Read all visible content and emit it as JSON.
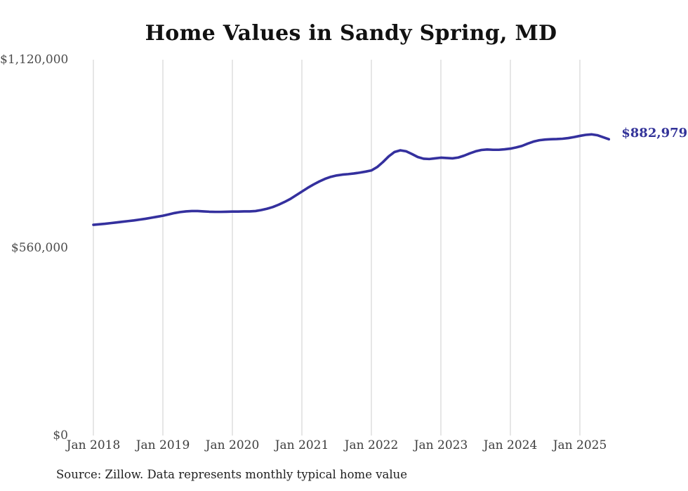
{
  "page": {
    "source_note": "Source: Zillow. Data represents monthly typical home value"
  },
  "chart_data": {
    "type": "line",
    "title": "Home Values in Sandy Spring, MD",
    "xlabel": "",
    "ylabel": "",
    "ylim": [
      0,
      1120000
    ],
    "grid": "vertical-only",
    "legend_position": "none",
    "end_label": "$882,979",
    "latest_value": 882979,
    "y_ticks": [
      {
        "value": 0,
        "label": "$0"
      },
      {
        "value": 560000,
        "label": "$560,000"
      },
      {
        "value": 1120000,
        "label": "$1,120,000"
      }
    ],
    "x_ticks": [
      "Jan 2018",
      "Jan 2019",
      "Jan 2020",
      "Jan 2021",
      "Jan 2022",
      "Jan 2023",
      "Jan 2024",
      "Jan 2025"
    ],
    "series": [
      {
        "name": "Monthly typical home value",
        "frequency": "monthly",
        "start_month": "2018-01",
        "end_month": "2025-06",
        "values": [
          628000,
          629500,
          631000,
          633000,
          635000,
          637000,
          639000,
          641000,
          643500,
          646000,
          649000,
          652000,
          655000,
          659000,
          663000,
          666000,
          668000,
          669000,
          669000,
          668000,
          667000,
          666500,
          666500,
          667000,
          667500,
          667500,
          668000,
          668000,
          669000,
          672000,
          676000,
          681000,
          688000,
          696000,
          705000,
          716000,
          727000,
          738000,
          748000,
          757000,
          765000,
          771000,
          775000,
          777500,
          779000,
          781000,
          783500,
          786500,
          790000,
          800000,
          815000,
          832000,
          845000,
          850000,
          847000,
          839000,
          830000,
          825000,
          824000,
          826000,
          828000,
          827000,
          826000,
          828500,
          834000,
          841000,
          847000,
          851000,
          852500,
          851500,
          851500,
          853000,
          855000,
          858500,
          863000,
          870000,
          876000,
          880000,
          882000,
          883000,
          883500,
          884500,
          886500,
          889500,
          893000,
          896000,
          897500,
          895000,
          889000,
          882979
        ]
      }
    ],
    "colors": {
      "line": "#34309e",
      "end_label": "#333399",
      "gridline": "#cccccc",
      "y_axis_text": "#4c4c4c",
      "x_axis_text": "#3d3d3d",
      "title_text": "#111111",
      "source_text": "#1f1f1f",
      "background": "#ffffff"
    }
  }
}
